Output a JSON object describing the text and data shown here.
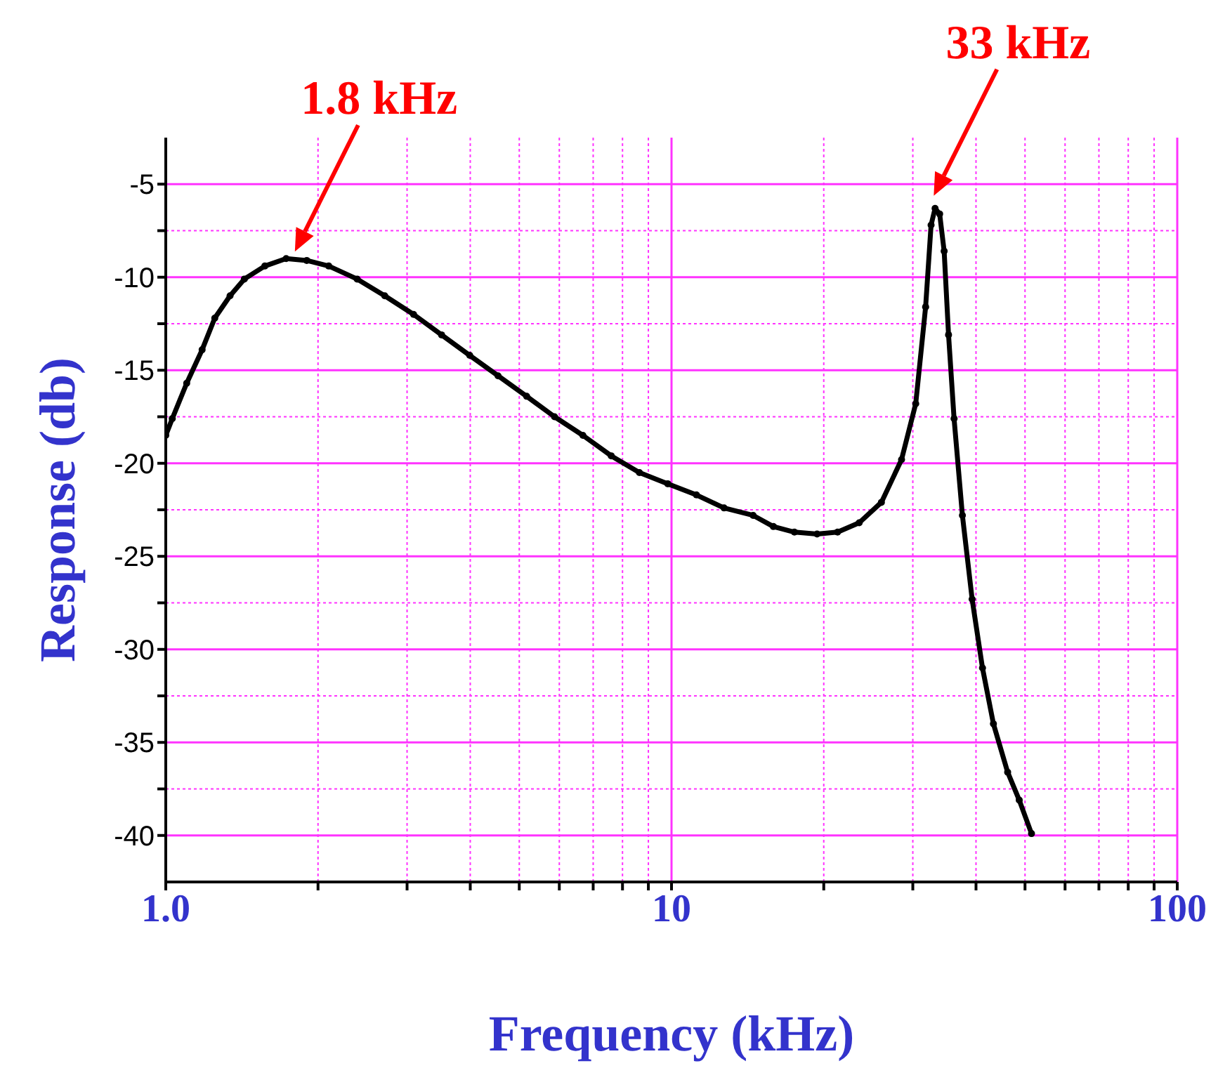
{
  "chart_data": {
    "type": "line",
    "xlabel": "Frequency (kHz)",
    "ylabel": "Response (db)",
    "log": "x",
    "grid": true,
    "marker": "circle",
    "line_style": "solid",
    "xlim": [
      1,
      100
    ],
    "ylim": [
      -42.5,
      -2.5
    ],
    "xticks": [
      {
        "value": 1,
        "label": "1.0"
      },
      {
        "value": 2,
        "label": null
      },
      {
        "value": 3,
        "label": null
      },
      {
        "value": 4,
        "label": null
      },
      {
        "value": 5,
        "label": null
      },
      {
        "value": 6,
        "label": null
      },
      {
        "value": 7,
        "label": null
      },
      {
        "value": 8,
        "label": null
      },
      {
        "value": 9,
        "label": null
      },
      10,
      {
        "value": 20,
        "label": null
      },
      {
        "value": 30,
        "label": null
      },
      {
        "value": 40,
        "label": null
      },
      {
        "value": 50,
        "label": null
      },
      {
        "value": 60,
        "label": null
      },
      {
        "value": 70,
        "label": null
      },
      {
        "value": 80,
        "label": null
      },
      {
        "value": 90,
        "label": null
      },
      100
    ],
    "yticks": [
      -5,
      {
        "value": -7.5,
        "label": null
      },
      -10,
      {
        "value": -12.5,
        "label": null
      },
      -15,
      {
        "value": -17.5,
        "label": null
      },
      -20,
      {
        "value": -22.5,
        "label": null
      },
      -25,
      {
        "value": -27.5,
        "label": null
      },
      -30,
      {
        "value": -32.5,
        "label": null
      },
      -35,
      {
        "value": -37.5,
        "label": null
      },
      -40
    ],
    "series": [
      {
        "color": "#000000",
        "x": [
          1.0,
          1.03,
          1.1,
          1.18,
          1.25,
          1.34,
          1.43,
          1.57,
          1.73,
          1.9,
          2.1,
          2.39,
          2.71,
          3.09,
          3.51,
          3.99,
          4.54,
          5.17,
          5.87,
          6.68,
          7.6,
          8.64,
          9.83,
          11.2,
          12.7,
          14.5,
          15.9,
          17.5,
          19.4,
          21.3,
          23.5,
          26.0,
          28.5,
          30.4,
          31.8,
          32.6,
          33.2,
          33.9,
          34.6,
          35.3,
          36.2,
          37.6,
          39.3,
          41.2,
          43.3,
          46.2,
          48.7,
          51.5
        ],
        "values": [
          -18.5,
          -17.6,
          -15.7,
          -13.9,
          -12.2,
          -11.0,
          -10.1,
          -9.4,
          -9.0,
          -9.1,
          -9.4,
          -10.1,
          -11.0,
          -12.0,
          -13.1,
          -14.2,
          -15.3,
          -16.4,
          -17.5,
          -18.5,
          -19.6,
          -20.5,
          -21.1,
          -21.7,
          -22.4,
          -22.8,
          -23.4,
          -23.7,
          -23.8,
          -23.7,
          -23.2,
          -22.1,
          -19.8,
          -16.8,
          -11.6,
          -7.2,
          -6.3,
          -6.6,
          -8.6,
          -13.1,
          -17.6,
          -22.8,
          -27.3,
          -31.0,
          -34.0,
          -36.6,
          -38.1,
          -39.9
        ]
      }
    ],
    "annotations": [
      {
        "text": "1.8 kHz",
        "x": 1.8,
        "y": -9
      },
      {
        "text": "33 kHz",
        "x": 33,
        "y": -6
      }
    ]
  }
}
